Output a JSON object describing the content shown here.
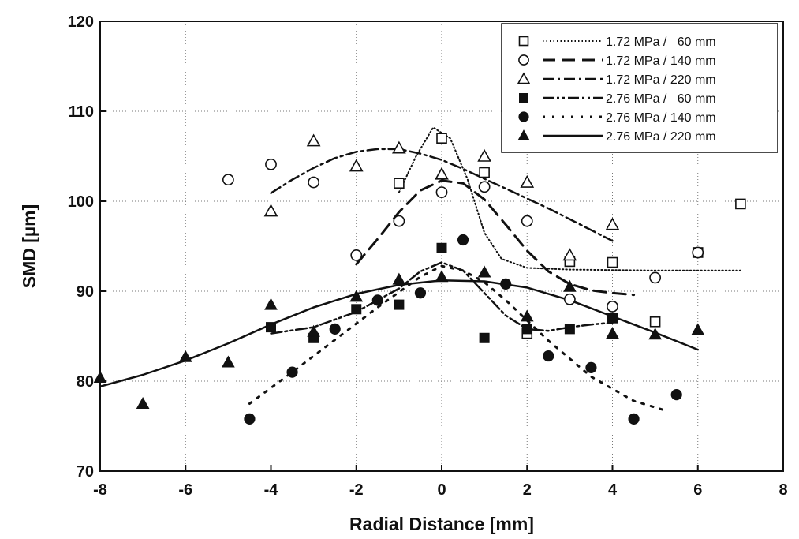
{
  "chart_data": {
    "type": "scatter",
    "title": "",
    "xlabel": "Radial Distance [mm]",
    "ylabel": "SMD [µm]",
    "xlim": [
      -8,
      8
    ],
    "ylim": [
      70,
      120
    ],
    "xticks": [
      -8,
      -6,
      -4,
      -2,
      0,
      2,
      4,
      6,
      8
    ],
    "yticks": [
      70,
      80,
      90,
      100,
      110,
      120
    ],
    "grid": true,
    "legend_position": "top-right",
    "series": [
      {
        "name": "1.72 MPa /   60 mm",
        "marker": "square-open",
        "line_style": "dotted",
        "points": [
          [
            -1,
            102
          ],
          [
            0,
            107
          ],
          [
            1,
            103.2
          ],
          [
            2,
            85.3
          ],
          [
            3,
            93.3
          ],
          [
            4,
            93.2
          ],
          [
            5,
            86.6
          ],
          [
            6,
            94.3
          ],
          [
            7,
            99.7
          ]
        ],
        "fit": [
          [
            -1,
            101
          ],
          [
            -0.6,
            105
          ],
          [
            -0.2,
            108.2
          ],
          [
            0.2,
            107
          ],
          [
            0.6,
            102.5
          ],
          [
            1,
            96.5
          ],
          [
            1.4,
            93.6
          ],
          [
            2,
            92.6
          ],
          [
            3,
            92.4
          ],
          [
            5,
            92.3
          ],
          [
            7,
            92.3
          ]
        ]
      },
      {
        "name": "1.72 MPa / 140 mm",
        "marker": "circle-open",
        "line_style": "dashed",
        "points": [
          [
            -5,
            102.4
          ],
          [
            -4,
            104.1
          ],
          [
            -3,
            102.1
          ],
          [
            -2,
            94
          ],
          [
            -1,
            97.8
          ],
          [
            0,
            101
          ],
          [
            1,
            101.6
          ],
          [
            2,
            97.8
          ],
          [
            3,
            89.1
          ],
          [
            4,
            88.3
          ],
          [
            5,
            91.5
          ],
          [
            6,
            94.3
          ]
        ],
        "fit": [
          [
            -2,
            93
          ],
          [
            -1.5,
            95.8
          ],
          [
            -1,
            98.8
          ],
          [
            -0.5,
            101.2
          ],
          [
            0,
            102.3
          ],
          [
            0.5,
            102
          ],
          [
            1,
            100.2
          ],
          [
            1.5,
            97.4
          ],
          [
            2,
            94.5
          ],
          [
            2.5,
            92.2
          ],
          [
            3,
            90.8
          ],
          [
            3.5,
            90.1
          ],
          [
            4,
            89.8
          ],
          [
            4.5,
            89.6
          ]
        ]
      },
      {
        "name": "1.72 MPa / 220 mm",
        "marker": "triangle-open",
        "line_style": "dashdot",
        "points": [
          [
            -4,
            98.9
          ],
          [
            -3,
            106.7
          ],
          [
            -2,
            103.9
          ],
          [
            -1,
            105.9
          ],
          [
            0,
            103
          ],
          [
            1,
            105
          ],
          [
            2,
            102.1
          ],
          [
            3,
            94
          ],
          [
            4,
            97.4
          ]
        ],
        "fit": [
          [
            -4,
            100.9
          ],
          [
            -3.5,
            102.4
          ],
          [
            -3,
            103.7
          ],
          [
            -2.5,
            104.8
          ],
          [
            -2,
            105.5
          ],
          [
            -1.5,
            105.8
          ],
          [
            -1,
            105.8
          ],
          [
            -0.5,
            105.3
          ],
          [
            0,
            104.6
          ],
          [
            0.5,
            103.6
          ],
          [
            1,
            102.5
          ],
          [
            1.5,
            101.4
          ],
          [
            2,
            100.3
          ],
          [
            2.5,
            99.2
          ],
          [
            3,
            98
          ],
          [
            3.5,
            96.8
          ],
          [
            4,
            95.6
          ]
        ]
      },
      {
        "name": "2.76 MPa /   60 mm",
        "marker": "square-filled",
        "line_style": "dashdotdot",
        "points": [
          [
            -4,
            86
          ],
          [
            -3,
            84.8
          ],
          [
            -2,
            88
          ],
          [
            -1,
            88.5
          ],
          [
            0,
            94.8
          ],
          [
            1,
            84.8
          ],
          [
            2,
            85.8
          ],
          [
            3,
            85.8
          ],
          [
            4,
            87
          ]
        ],
        "fit": [
          [
            -4,
            85.3
          ],
          [
            -3,
            86
          ],
          [
            -2,
            87.7
          ],
          [
            -1,
            90.3
          ],
          [
            -0.5,
            92.2
          ],
          [
            0,
            93.2
          ],
          [
            0.5,
            92.3
          ],
          [
            1,
            89.8
          ],
          [
            1.5,
            87.3
          ],
          [
            2,
            85.8
          ],
          [
            2.5,
            85.6
          ],
          [
            3,
            86
          ],
          [
            3.5,
            86.3
          ],
          [
            4,
            86.5
          ]
        ]
      },
      {
        "name": "2.76 MPa / 140 mm",
        "marker": "circle-filled",
        "line_style": "dotted-wide",
        "points": [
          [
            -4.5,
            75.8
          ],
          [
            -3.5,
            81
          ],
          [
            -2.5,
            85.8
          ],
          [
            -1.5,
            89
          ],
          [
            -0.5,
            89.8
          ],
          [
            0.5,
            95.7
          ],
          [
            1.5,
            90.8
          ],
          [
            2.5,
            82.8
          ],
          [
            3.5,
            81.5
          ],
          [
            4.5,
            75.8
          ],
          [
            5.5,
            78.5
          ]
        ],
        "fit": [
          [
            -4.5,
            77.5
          ],
          [
            -3.5,
            81
          ],
          [
            -2.5,
            84.6
          ],
          [
            -1.5,
            88.2
          ],
          [
            -0.5,
            91.6
          ],
          [
            0,
            92.8
          ],
          [
            0.5,
            92.3
          ],
          [
            1,
            91
          ],
          [
            1.5,
            89
          ],
          [
            2.5,
            84.5
          ],
          [
            3.5,
            80.5
          ],
          [
            4.5,
            77.8
          ],
          [
            5.2,
            76.8
          ]
        ]
      },
      {
        "name": "2.76 MPa / 220 mm",
        "marker": "triangle-filled",
        "line_style": "solid",
        "points": [
          [
            -8,
            80.4
          ],
          [
            -7,
            77.5
          ],
          [
            -6,
            82.7
          ],
          [
            -5,
            82.1
          ],
          [
            -4,
            88.5
          ],
          [
            -3,
            85.5
          ],
          [
            -2,
            89.4
          ],
          [
            -1,
            91.3
          ],
          [
            0,
            91.6
          ],
          [
            1,
            92.1
          ],
          [
            2,
            87.2
          ],
          [
            3,
            90.5
          ],
          [
            4,
            85.3
          ],
          [
            5,
            85.2
          ],
          [
            6,
            85.7
          ]
        ],
        "fit": [
          [
            -8,
            79.4
          ],
          [
            -7,
            80.7
          ],
          [
            -6,
            82.3
          ],
          [
            -5,
            84.2
          ],
          [
            -4,
            86.3
          ],
          [
            -3,
            88.2
          ],
          [
            -2,
            89.7
          ],
          [
            -1,
            90.7
          ],
          [
            0,
            91.2
          ],
          [
            1,
            91.1
          ],
          [
            2,
            90.4
          ],
          [
            3,
            89
          ],
          [
            4,
            87.2
          ],
          [
            5,
            85.4
          ],
          [
            6,
            83.5
          ]
        ]
      }
    ]
  }
}
